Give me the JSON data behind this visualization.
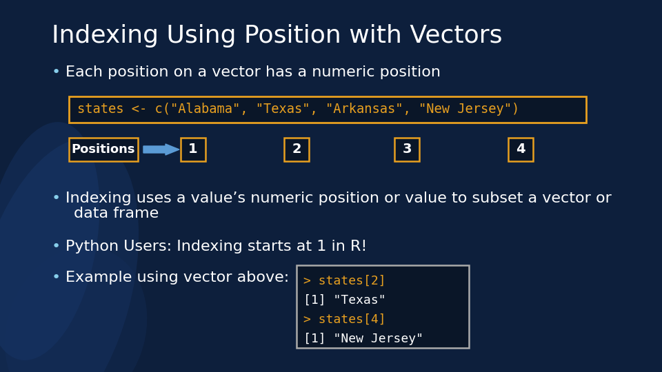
{
  "title": "Indexing Using Position with Vectors",
  "title_color": "#ffffff",
  "title_fontsize": 26,
  "bg_color": "#0d1f3c",
  "bg_dark": "#081428",
  "bullet_color": "#87ceeb",
  "bullet_text_color": "#ffffff",
  "bullet_fontsize": 16,
  "code_line1": "states <- c(\"Alabama\", \"Texas\", \"Arkansas\", \"New Jersey\")",
  "code_color": "#e8a020",
  "code_bg": "#0a1628",
  "code_border": "#e8a020",
  "positions_label": "Positions",
  "position_numbers": [
    "1",
    "2",
    "3",
    "4"
  ],
  "arrow_color": "#5b9bd5",
  "pos_border_color": "#e8a020",
  "ex_code_lines": [
    "> states[2]",
    "[1] \"Texas\"",
    "> states[4]",
    "[1] \"New Jersey\""
  ],
  "ex_code_colors": [
    "#e8a020",
    "#ffffff",
    "#e8a020",
    "#ffffff"
  ]
}
